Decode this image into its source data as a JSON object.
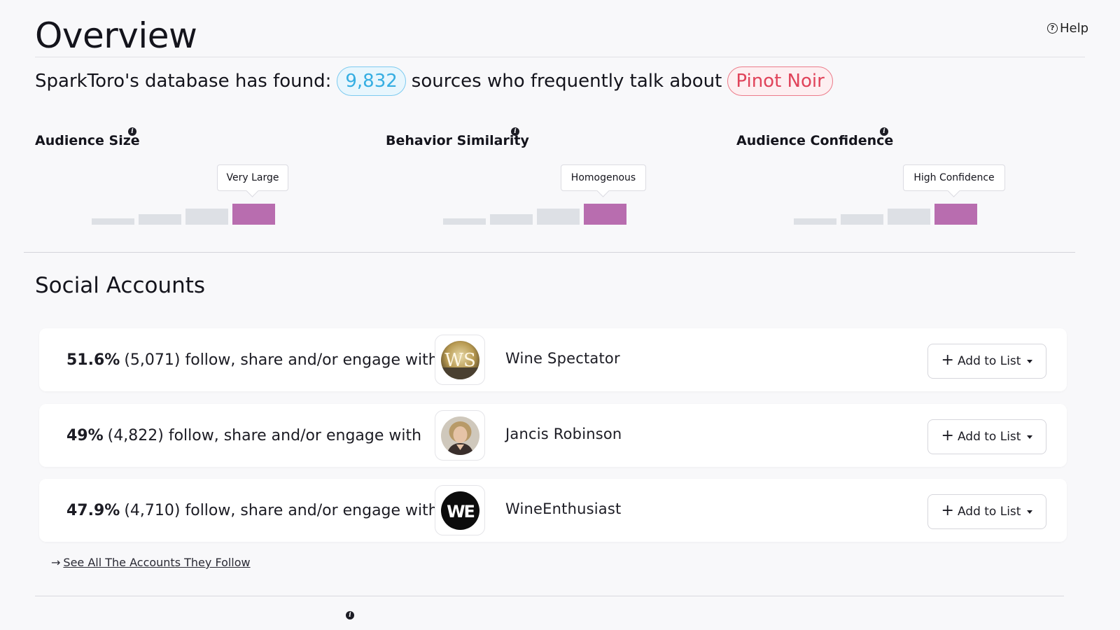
{
  "header": {
    "title": "Overview",
    "help_label": "Help",
    "help_icon": "question-circle-icon"
  },
  "summary": {
    "prefix": "SparkToro's database has found:",
    "count": "9,832",
    "middle": "sources who frequently talk about",
    "topic": "Pinot Noir"
  },
  "metrics": [
    {
      "label": "Audience Size",
      "value": "Very Large",
      "level": 4,
      "of": 4
    },
    {
      "label": "Behavior Similarity",
      "value": "Homogenous",
      "level": 4,
      "of": 4
    },
    {
      "label": "Audience Confidence",
      "value": "High Confidence",
      "level": 4,
      "of": 4
    }
  ],
  "social": {
    "title": "Social Accounts",
    "accounts": [
      {
        "percent": "51.6%",
        "count": "(5,071)",
        "phrase": "follow, share and/or engage with",
        "name": "Wine Spectator",
        "avatar_icon": "wine-spectator-logo"
      },
      {
        "percent": "49%",
        "count": "(4,822)",
        "phrase": "follow, share and/or engage with",
        "name": "Jancis Robinson",
        "avatar_icon": "person-photo"
      },
      {
        "percent": "47.9%",
        "count": "(4,710)",
        "phrase": "follow, share and/or engage with",
        "name": "WineEnthusiast",
        "avatar_icon": "wine-enthusiast-logo"
      }
    ],
    "add_to_list_label": "Add to List",
    "see_all_arrow": "→",
    "see_all_label": "See All The Accounts They Follow"
  },
  "colors": {
    "bar_inactive": "#dde0e5",
    "bar_active": "#b86daf",
    "count_pill": "#35aee2",
    "topic_pill": "#e0435a"
  }
}
